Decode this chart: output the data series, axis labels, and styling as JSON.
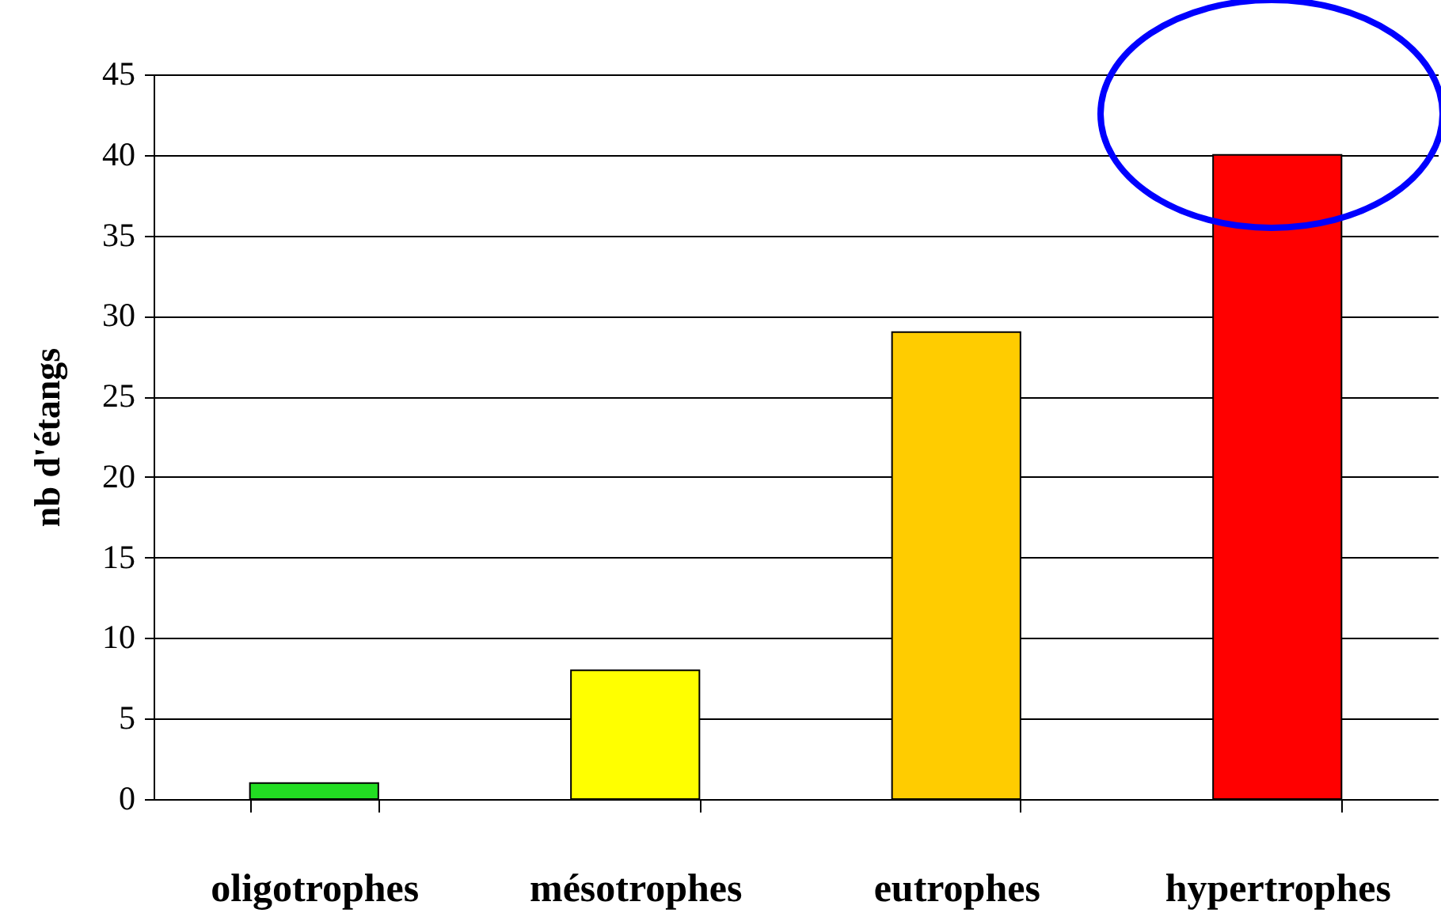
{
  "chart_data": {
    "type": "bar",
    "ylabel": "nb d'étangs",
    "categories": [
      "oligotrophes",
      "mésotrophes",
      "eutrophes",
      "hypertrophes"
    ],
    "values": [
      1,
      8,
      29,
      40
    ],
    "colors": [
      "#22dd22",
      "#ffff00",
      "#ffcc00",
      "#ff0000"
    ],
    "ylim": [
      0,
      45
    ],
    "yticks": [
      0,
      5,
      10,
      15,
      20,
      25,
      30,
      35,
      40,
      45
    ],
    "grid": "y"
  }
}
